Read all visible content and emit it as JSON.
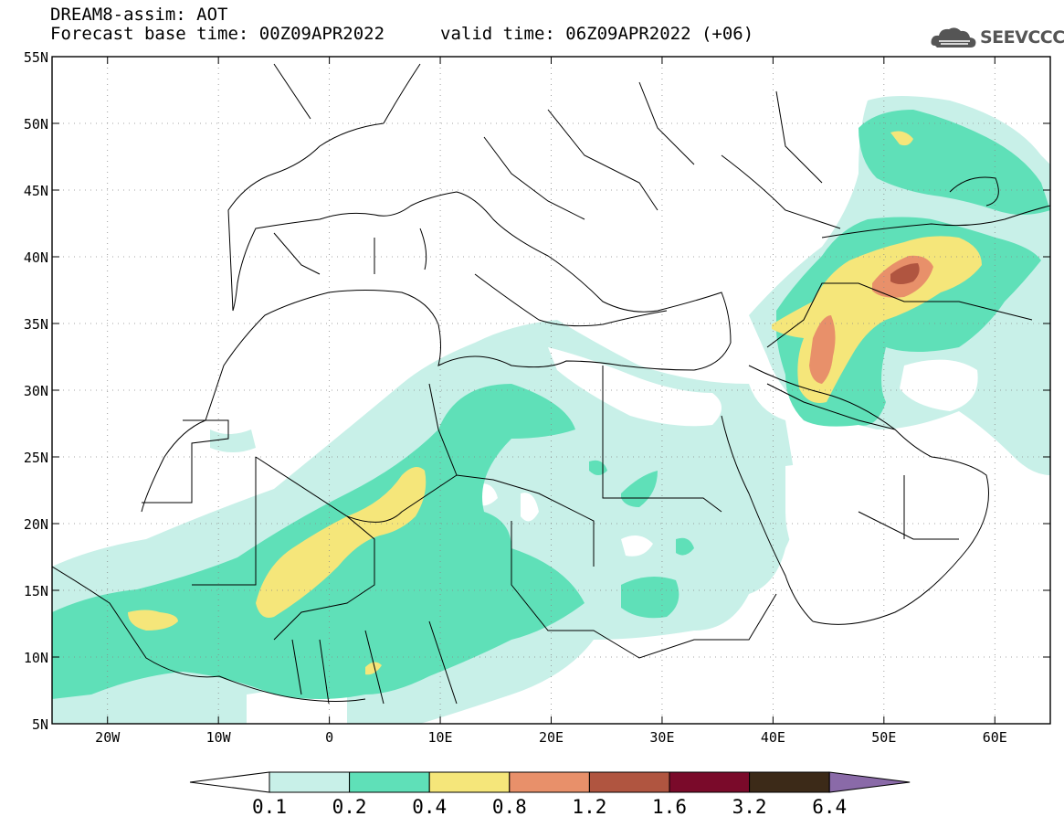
{
  "header": {
    "line1": "DREAM8-assim: AOT",
    "line2a": "Forecast base time: 00Z09APR2022",
    "line2b": "valid time: 06Z09APR2022 (+06)"
  },
  "logo": {
    "text": "SEEVCCC",
    "icon": "cloud-icon"
  },
  "map": {
    "lat_labels": [
      "55N",
      "50N",
      "45N",
      "40N",
      "35N",
      "30N",
      "25N",
      "20N",
      "15N",
      "10N",
      "5N"
    ],
    "lon_labels": [
      "20W",
      "10W",
      "0",
      "10E",
      "20E",
      "30E",
      "40E",
      "50E",
      "60E"
    ],
    "lat_range": [
      5,
      55
    ],
    "lon_range": [
      -25,
      65
    ],
    "grid": true
  },
  "legend": {
    "labels": [
      "0.1",
      "0.2",
      "0.4",
      "0.8",
      "1.2",
      "1.6",
      "3.2",
      "6.4"
    ],
    "colors": [
      "#ffffff",
      "#c8f0e8",
      "#5fe0b8",
      "#f5e67a",
      "#e8906a",
      "#b05540",
      "#7a0a2a",
      "#3c2a18",
      "#8a6aa8"
    ]
  }
}
